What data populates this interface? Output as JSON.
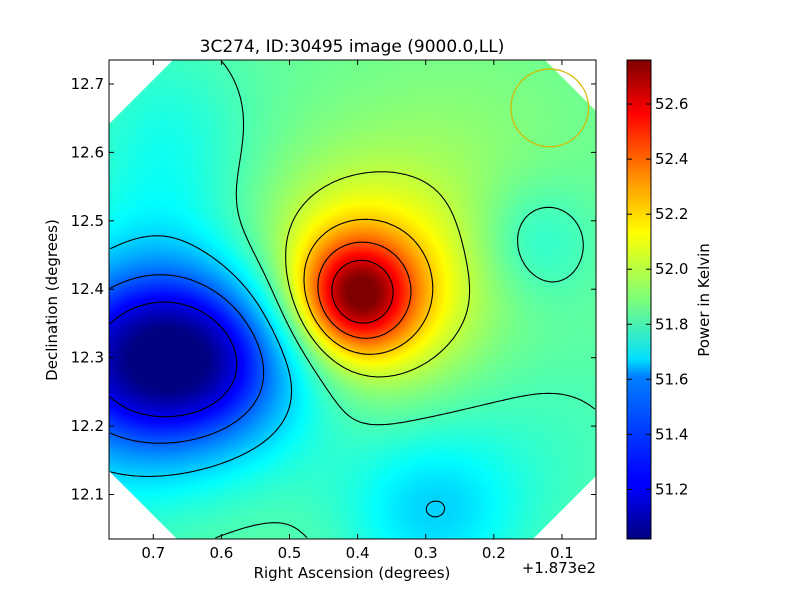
{
  "chart_data": {
    "type": "heatmap",
    "title": "3C274, ID:30495 image (9000.0,LL)",
    "xlabel": "Right Ascension (degrees)",
    "ylabel": "Declination (degrees)",
    "x_offset_label": "+1.873e2",
    "colorbar_label": "Power in Kelvin",
    "colormap": "jet",
    "xlim": [
      0.765,
      0.05
    ],
    "ylim": [
      12.035,
      12.735
    ],
    "clim": [
      51.02,
      52.76
    ],
    "x_ticks": [
      0.7,
      0.6,
      0.5,
      0.4,
      0.3,
      0.2,
      0.1
    ],
    "x_tick_labels": [
      "0.7",
      "0.6",
      "0.5",
      "0.4",
      "0.3",
      "0.2",
      "0.1"
    ],
    "y_ticks": [
      12.1,
      12.2,
      12.3,
      12.4,
      12.5,
      12.6,
      12.7
    ],
    "y_tick_labels": [
      "12.1",
      "12.2",
      "12.3",
      "12.4",
      "12.5",
      "12.6",
      "12.7"
    ],
    "colorbar_ticks": [
      51.2,
      51.4,
      51.6,
      51.8,
      52.0,
      52.2,
      52.4,
      52.6
    ],
    "colorbar_tick_labels": [
      "51.2",
      "51.4",
      "51.6",
      "51.8",
      "52.0",
      "52.2",
      "52.4",
      "52.6"
    ],
    "background_level": 51.85,
    "peak": {
      "x": 0.4,
      "y": 12.39,
      "value": 52.76
    },
    "minimum": {
      "x": 0.66,
      "y": 12.3,
      "value": 51.02
    },
    "beam_circle": {
      "x": 0.118,
      "y": 12.665,
      "radius_deg": 0.057,
      "color": "#d4b800"
    },
    "contour_color": "#000000",
    "contour_levels": [
      51.2,
      51.4,
      51.6,
      51.8,
      52.0,
      52.2,
      52.4,
      52.6
    ],
    "blank_corner_color": "#ffffff",
    "grid": false
  }
}
